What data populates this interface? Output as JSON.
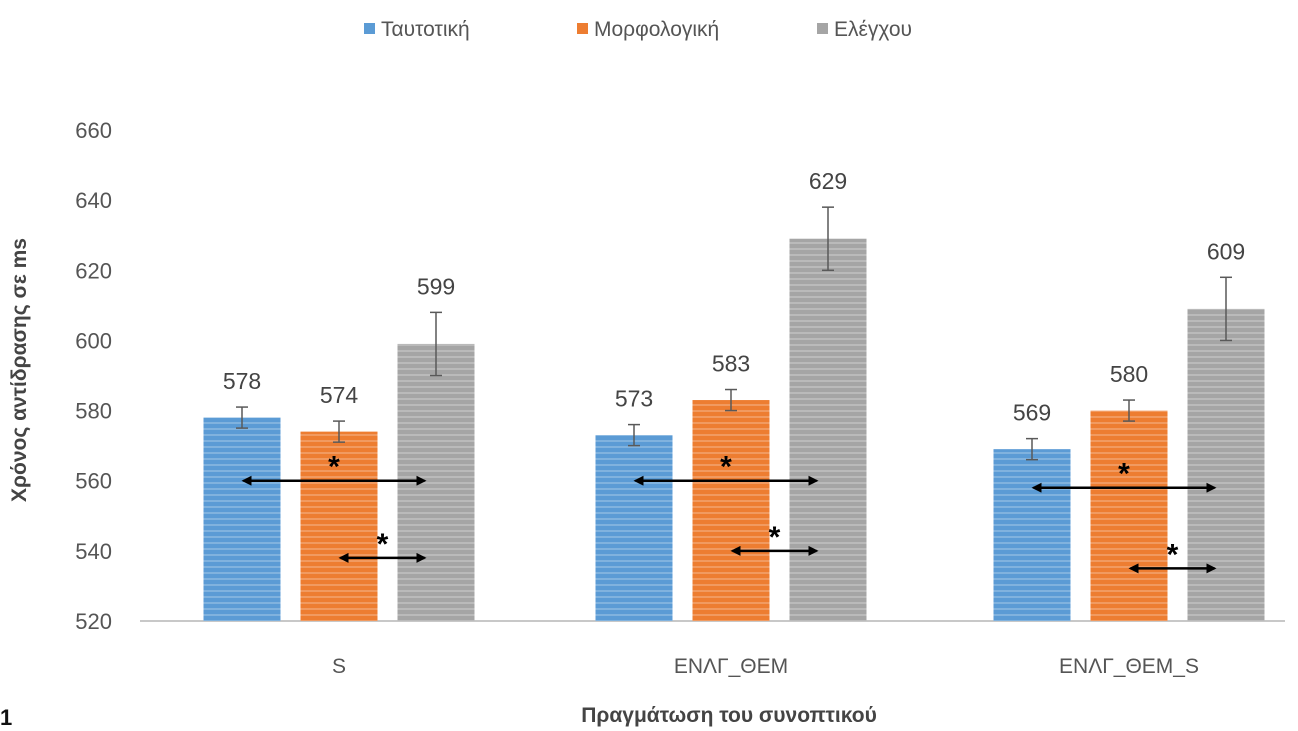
{
  "page_number": "1",
  "chart_data": {
    "type": "bar",
    "title": "",
    "xlabel": "Πραγμάτωση του συνοπτικού",
    "ylabel": "Χρόνος αντίδρασης σε ms",
    "ylim": [
      520,
      660
    ],
    "yticks": [
      520,
      540,
      560,
      580,
      600,
      620,
      640,
      660
    ],
    "grid": false,
    "legend_position": "top",
    "categories": [
      "S",
      "ΕΝΛΓ_ΘΕΜ",
      "ΕΝΛΓ_ΘΕΜ_S"
    ],
    "series": [
      {
        "name": "Ταυτοτική",
        "color": "#5b9bd5",
        "values": [
          578,
          573,
          569
        ],
        "errors": [
          3,
          3,
          3
        ]
      },
      {
        "name": "Μορφολογική",
        "color": "#ed7d31",
        "values": [
          574,
          583,
          580
        ],
        "errors": [
          3,
          3,
          3
        ]
      },
      {
        "name": "Ελέγχου",
        "color": "#a5a5a5",
        "values": [
          599,
          629,
          609
        ],
        "errors": [
          9,
          9,
          9
        ]
      }
    ],
    "annotations": {
      "marker": "*",
      "comparisons": [
        {
          "category": 0,
          "from_series": 0,
          "to_series": 2,
          "y": 560
        },
        {
          "category": 0,
          "from_series": 1,
          "to_series": 2,
          "y": 538
        },
        {
          "category": 1,
          "from_series": 0,
          "to_series": 2,
          "y": 560
        },
        {
          "category": 1,
          "from_series": 1,
          "to_series": 2,
          "y": 540
        },
        {
          "category": 2,
          "from_series": 0,
          "to_series": 2,
          "y": 558
        },
        {
          "category": 2,
          "from_series": 1,
          "to_series": 2,
          "y": 535
        }
      ]
    }
  }
}
